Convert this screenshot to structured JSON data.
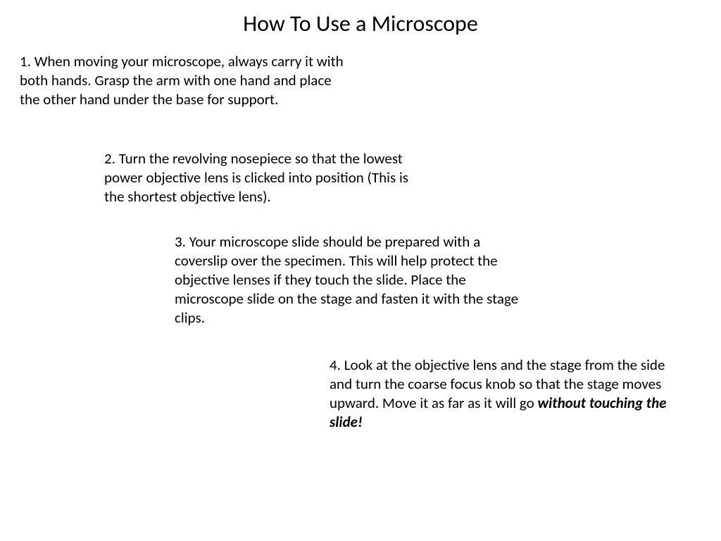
{
  "document": {
    "title": "How To Use a Microscope",
    "background_color": "#ffffff",
    "text_color": "#000000",
    "title_fontsize": 32,
    "body_fontsize": 21,
    "steps": [
      {
        "text": "1. When moving your microscope, always carry it with both hands. Grasp the arm with one hand and place the other hand under the base for support."
      },
      {
        "text": "2. Turn the revolving nosepiece so that the lowest power objective lens is clicked into position (This is the shortest objective lens)."
      },
      {
        "text": "3. Your microscope slide should be prepared with a coverslip over the specimen.  This will help protect the objective lenses if they touch the slide.  Place the microscope slide on the stage and fasten it with the stage clips."
      },
      {
        "text_before": "4. Look at the objective lens and the stage from the side and turn the coarse focus knob so that the stage moves upward.  Move it as far as it will go ",
        "emphasis": "without touching the slide",
        "text_after": "!"
      }
    ]
  }
}
